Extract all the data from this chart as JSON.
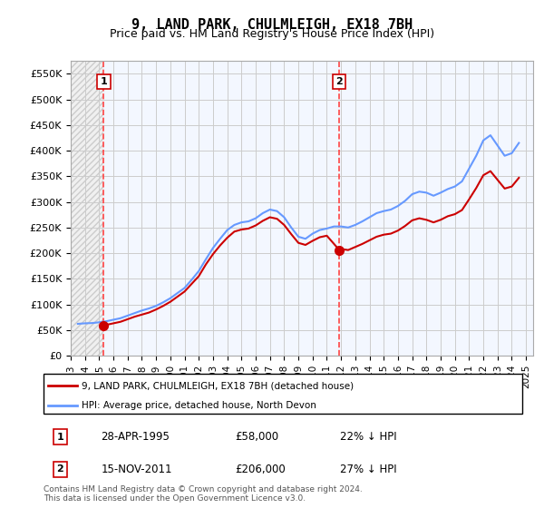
{
  "title": "9, LAND PARK, CHULMLEIGH, EX18 7BH",
  "subtitle": "Price paid vs. HM Land Registry's House Price Index (HPI)",
  "title_fontsize": 11,
  "subtitle_fontsize": 9,
  "ylabel_values": [
    0,
    50000,
    100000,
    150000,
    200000,
    250000,
    300000,
    350000,
    400000,
    450000,
    500000,
    550000
  ],
  "ylim": [
    0,
    575000
  ],
  "xlim_start": 1993.0,
  "xlim_end": 2025.5,
  "purchase1_date": 1995.32,
  "purchase1_price": 58000,
  "purchase1_label": "1",
  "purchase2_date": 2011.88,
  "purchase2_price": 206000,
  "purchase2_label": "2",
  "hpi_color": "#6699ff",
  "price_color": "#cc0000",
  "dashed_vline_color": "#ff4444",
  "background_hatch_color": "#e8e8e8",
  "background_light_color": "#eef4ff",
  "grid_color": "#cccccc",
  "legend_line1": "9, LAND PARK, CHULMLEIGH, EX18 7BH (detached house)",
  "legend_line2": "HPI: Average price, detached house, North Devon",
  "table_row1": [
    "1",
    "28-APR-1995",
    "£58,000",
    "22% ↓ HPI"
  ],
  "table_row2": [
    "2",
    "15-NOV-2011",
    "£206,000",
    "27% ↓ HPI"
  ],
  "footnote": "Contains HM Land Registry data © Crown copyright and database right 2024.\nThis data is licensed under the Open Government Licence v3.0.",
  "hpi_data_x": [
    1993.5,
    1994.0,
    1994.5,
    1995.0,
    1995.5,
    1996.0,
    1996.5,
    1997.0,
    1997.5,
    1998.0,
    1998.5,
    1999.0,
    1999.5,
    2000.0,
    2000.5,
    2001.0,
    2001.5,
    2002.0,
    2002.5,
    2003.0,
    2003.5,
    2004.0,
    2004.5,
    2005.0,
    2005.5,
    2006.0,
    2006.5,
    2007.0,
    2007.5,
    2008.0,
    2008.5,
    2009.0,
    2009.5,
    2010.0,
    2010.5,
    2011.0,
    2011.5,
    2012.0,
    2012.5,
    2013.0,
    2013.5,
    2014.0,
    2014.5,
    2015.0,
    2015.5,
    2016.0,
    2016.5,
    2017.0,
    2017.5,
    2018.0,
    2018.5,
    2019.0,
    2019.5,
    2020.0,
    2020.5,
    2021.0,
    2021.5,
    2022.0,
    2022.5,
    2023.0,
    2023.5,
    2024.0,
    2024.5
  ],
  "hpi_data_y": [
    62000,
    63000,
    63500,
    65000,
    67000,
    70000,
    73000,
    78000,
    83000,
    88000,
    92000,
    97000,
    104000,
    112000,
    122000,
    132000,
    148000,
    165000,
    188000,
    210000,
    228000,
    245000,
    255000,
    260000,
    262000,
    268000,
    278000,
    285000,
    282000,
    270000,
    250000,
    232000,
    228000,
    238000,
    245000,
    248000,
    252000,
    252000,
    250000,
    255000,
    262000,
    270000,
    278000,
    282000,
    285000,
    292000,
    302000,
    315000,
    320000,
    318000,
    312000,
    318000,
    325000,
    330000,
    340000,
    365000,
    390000,
    420000,
    430000,
    410000,
    390000,
    395000,
    415000
  ],
  "price_data_x": [
    1995.32,
    1995.5,
    1996.0,
    1996.5,
    1997.0,
    1997.5,
    1998.0,
    1998.5,
    1999.0,
    1999.5,
    2000.0,
    2000.5,
    2001.0,
    2001.5,
    2002.0,
    2002.5,
    2003.0,
    2003.5,
    2004.0,
    2004.5,
    2005.0,
    2005.5,
    2006.0,
    2006.5,
    2007.0,
    2007.5,
    2008.0,
    2008.5,
    2009.0,
    2009.5,
    2010.0,
    2010.5,
    2011.0,
    2011.88,
    2011.88,
    2012.0,
    2012.5,
    2013.0,
    2013.5,
    2014.0,
    2014.5,
    2015.0,
    2015.5,
    2016.0,
    2016.5,
    2017.0,
    2017.5,
    2018.0,
    2018.5,
    2019.0,
    2019.5,
    2020.0,
    2020.5,
    2021.0,
    2021.5,
    2022.0,
    2022.5,
    2023.0,
    2023.5,
    2024.0,
    2024.5
  ],
  "price_data_y": [
    58000,
    60000,
    63000,
    66000,
    71000,
    76000,
    80000,
    84000,
    90000,
    97000,
    105000,
    115000,
    125000,
    140000,
    155000,
    178000,
    198000,
    215000,
    230000,
    242000,
    246000,
    248000,
    254000,
    263000,
    270000,
    267000,
    255000,
    237000,
    220000,
    216000,
    224000,
    231000,
    234000,
    206000,
    206000,
    208000,
    206000,
    212000,
    218000,
    225000,
    232000,
    236000,
    238000,
    244000,
    253000,
    264000,
    268000,
    265000,
    260000,
    265000,
    272000,
    276000,
    284000,
    305000,
    327000,
    352000,
    360000,
    343000,
    326000,
    330000,
    347000
  ]
}
